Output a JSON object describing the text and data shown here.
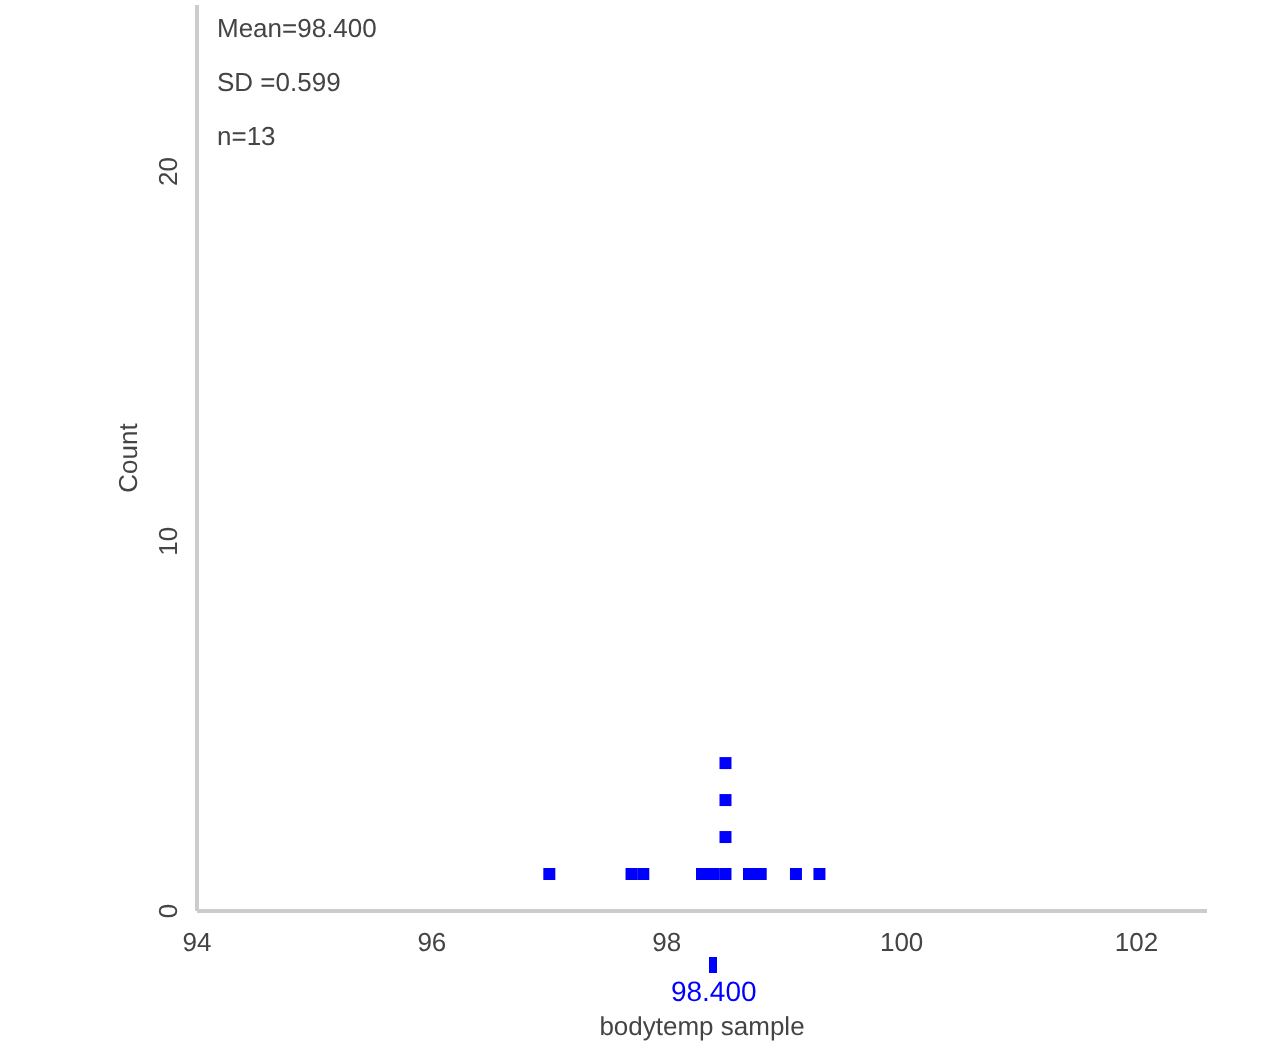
{
  "chart_data": {
    "type": "scatter",
    "xlabel": "bodytemp sample",
    "ylabel": "Count",
    "x": [
      97.0,
      97.7,
      97.8,
      98.3,
      98.4,
      98.5,
      98.5,
      98.5,
      98.5,
      98.7,
      98.8,
      99.1,
      99.3
    ],
    "values": [
      1,
      1,
      1,
      1,
      1,
      1,
      2,
      3,
      4,
      1,
      1,
      1,
      1
    ],
    "color": "#0000ff",
    "marker": "square",
    "grid": false,
    "xlim": [
      94,
      102.6
    ],
    "xticks": [
      94,
      96,
      98,
      100,
      102
    ],
    "ylim": [
      0,
      24.5
    ],
    "yticks": [
      0,
      10,
      20
    ],
    "ref_lines": [
      {
        "axis": "x",
        "value": 98.4,
        "label": "98.400"
      }
    ],
    "annotations": [
      "Mean=98.400",
      "SD =0.599",
      "n=13"
    ]
  }
}
